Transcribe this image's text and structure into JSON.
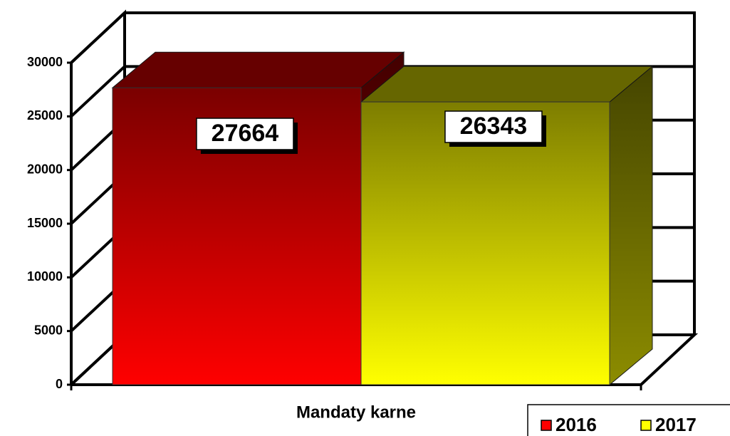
{
  "chart_data": {
    "type": "bar3d",
    "categories": [
      "Mandaty karne"
    ],
    "series": [
      {
        "name": "2016",
        "color": "#ff0000",
        "values": [
          27664
        ]
      },
      {
        "name": "2017",
        "color": "#ffff00",
        "values": [
          26343
        ]
      }
    ],
    "ylim": [
      0,
      30000
    ],
    "yticks": [
      0,
      5000,
      10000,
      15000,
      20000,
      25000,
      30000
    ],
    "grid": true,
    "legend": "bottom-right"
  }
}
